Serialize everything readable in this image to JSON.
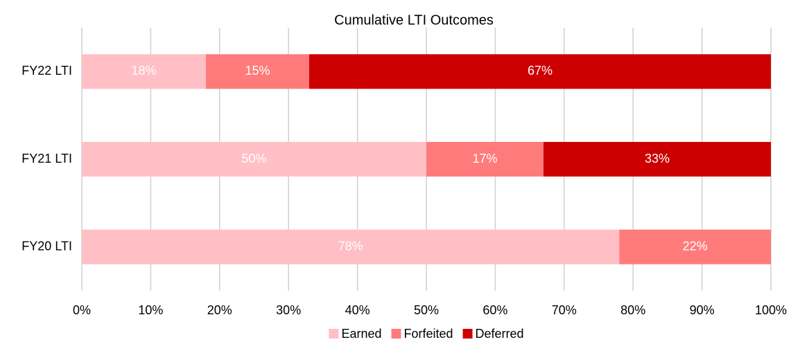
{
  "chart_data": {
    "type": "stacked_barh",
    "title": "Cumulative LTI Outcomes",
    "categories": [
      "FY22 LTI",
      "FY21 LTI",
      "FY20 LTI"
    ],
    "series": [
      {
        "name": "Earned",
        "color": "#ffbfc5",
        "values": [
          18,
          50,
          78
        ],
        "value_labels": [
          "18%",
          "50%",
          "78%"
        ]
      },
      {
        "name": "Forfeited",
        "color": "#ff7b7b",
        "values": [
          15,
          17,
          22
        ],
        "value_labels": [
          "15%",
          "17%",
          "22%"
        ]
      },
      {
        "name": "Deferred",
        "color": "#cc0000",
        "values": [
          67,
          33,
          null
        ],
        "value_labels": [
          "67%",
          "33%",
          null
        ]
      }
    ],
    "xlim": [
      0,
      100
    ],
    "xticks": [
      {
        "value": 0,
        "label": "0%"
      },
      {
        "value": 10,
        "label": "10%"
      },
      {
        "value": 20,
        "label": "20%"
      },
      {
        "value": 30,
        "label": "30%"
      },
      {
        "value": 40,
        "label": "40%"
      },
      {
        "value": 50,
        "label": "50%"
      },
      {
        "value": 60,
        "label": "60%"
      },
      {
        "value": 70,
        "label": "70%"
      },
      {
        "value": 80,
        "label": "80%"
      },
      {
        "value": 90,
        "label": "90%"
      },
      {
        "value": 100,
        "label": "100%"
      }
    ],
    "grid": true,
    "legend": "bottom"
  }
}
